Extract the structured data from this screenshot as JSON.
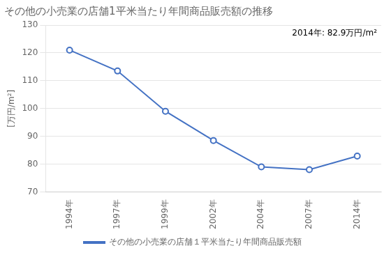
{
  "chart_data": {
    "type": "line",
    "title": "その他の小売業の店舗1平米当たり年間商品販売額の推移",
    "y_label": "[万円/m²]",
    "annotation": "2014年: 82.9万円/m²",
    "categories": [
      "1994年",
      "1997年",
      "1999年",
      "2002年",
      "2004年",
      "2007年",
      "2014年"
    ],
    "series": [
      {
        "name": "その他の小売業の店舗１平米当たり年間商品販売額",
        "color": "#4472C4",
        "values": [
          121.0,
          113.5,
          99.0,
          88.5,
          79.0,
          78.0,
          82.9
        ]
      }
    ],
    "ylim": [
      70,
      130
    ],
    "yticks": [
      70,
      80,
      90,
      100,
      110,
      120,
      130
    ],
    "grid": true,
    "legend": "bottom",
    "marker": "circle"
  }
}
